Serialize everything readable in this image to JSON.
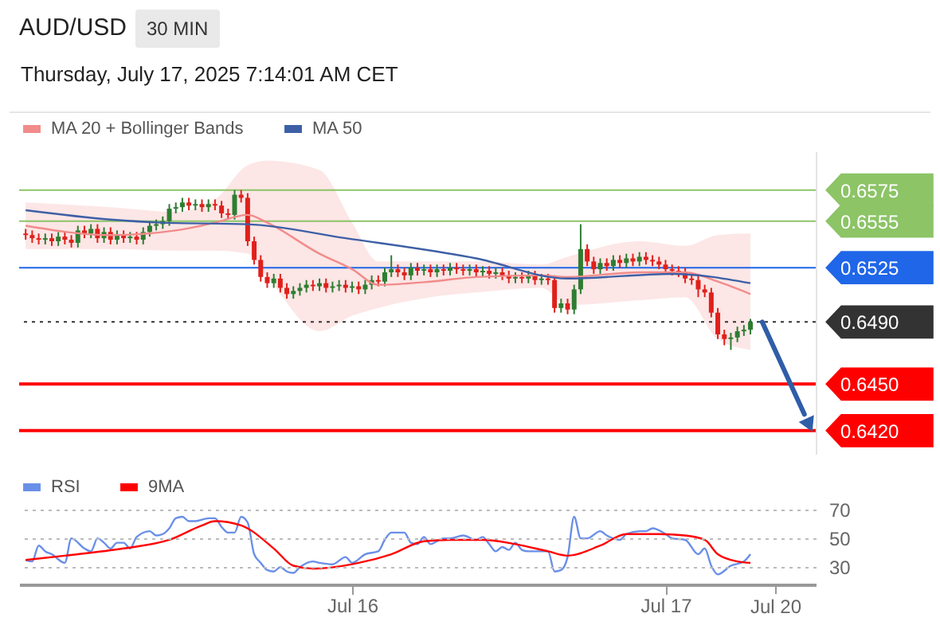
{
  "chart_data": [
    {
      "type": "candlestick",
      "title": "AUD/USD",
      "subtitle": "Thursday, July 17, 2025 7:14:01 AM CET",
      "annotations": [
        "30 MIN"
      ],
      "x": [
        "2025-07-14T23:00",
        "2025-07-14T23:30",
        "2025-07-15T00:00",
        "2025-07-15T00:30",
        "2025-07-15T01:00",
        "2025-07-15T01:30",
        "2025-07-15T02:00",
        "2025-07-15T02:30",
        "2025-07-15T03:00",
        "2025-07-15T03:30",
        "2025-07-15T04:00",
        "2025-07-15T04:30",
        "2025-07-15T05:00",
        "2025-07-15T05:30",
        "2025-07-15T06:00",
        "2025-07-15T06:30",
        "2025-07-15T07:00",
        "2025-07-15T07:30",
        "2025-07-15T08:00",
        "2025-07-15T08:30",
        "2025-07-15T09:00",
        "2025-07-15T09:30",
        "2025-07-15T10:00",
        "2025-07-15T10:30",
        "2025-07-15T11:00",
        "2025-07-15T11:30",
        "2025-07-15T12:00",
        "2025-07-15T12:30",
        "2025-07-15T13:00",
        "2025-07-15T13:30",
        "2025-07-15T14:00",
        "2025-07-15T14:30",
        "2025-07-15T15:00",
        "2025-07-15T15:30",
        "2025-07-15T16:00",
        "2025-07-15T16:30",
        "2025-07-15T17:00",
        "2025-07-15T17:30",
        "2025-07-15T18:00",
        "2025-07-15T18:30",
        "2025-07-15T19:00",
        "2025-07-15T19:30",
        "2025-07-15T20:00",
        "2025-07-15T20:30",
        "2025-07-15T21:00",
        "2025-07-15T21:30",
        "2025-07-15T22:00",
        "2025-07-15T22:30",
        "2025-07-15T23:00",
        "2025-07-15T23:30",
        "2025-07-16T00:00",
        "2025-07-16T00:30",
        "2025-07-16T01:00",
        "2025-07-16T01:30",
        "2025-07-16T02:00",
        "2025-07-16T02:30",
        "2025-07-16T03:00",
        "2025-07-16T03:30",
        "2025-07-16T04:00",
        "2025-07-16T04:30",
        "2025-07-16T05:00",
        "2025-07-16T05:30",
        "2025-07-16T06:00",
        "2025-07-16T06:30",
        "2025-07-16T07:00",
        "2025-07-16T07:30",
        "2025-07-16T08:00",
        "2025-07-16T08:30",
        "2025-07-16T09:00",
        "2025-07-16T09:30",
        "2025-07-16T10:00",
        "2025-07-16T10:30",
        "2025-07-16T11:00",
        "2025-07-16T11:30",
        "2025-07-16T12:00",
        "2025-07-16T12:30",
        "2025-07-16T13:00",
        "2025-07-16T13:30",
        "2025-07-16T14:00",
        "2025-07-16T14:30",
        "2025-07-16T15:00",
        "2025-07-16T15:30",
        "2025-07-16T16:00",
        "2025-07-16T16:30",
        "2025-07-16T17:00",
        "2025-07-16T17:30",
        "2025-07-16T18:00",
        "2025-07-16T18:30",
        "2025-07-16T19:00",
        "2025-07-16T19:30",
        "2025-07-16T20:00",
        "2025-07-16T20:30",
        "2025-07-16T21:00",
        "2025-07-16T21:30",
        "2025-07-16T22:00",
        "2025-07-16T22:30",
        "2025-07-16T23:00",
        "2025-07-16T23:30",
        "2025-07-17T00:00",
        "2025-07-17T00:30",
        "2025-07-17T01:00",
        "2025-07-17T01:30",
        "2025-07-17T02:00",
        "2025-07-17T02:30",
        "2025-07-17T03:00",
        "2025-07-17T03:30",
        "2025-07-17T04:00",
        "2025-07-17T04:30",
        "2025-07-17T05:00",
        "2025-07-17T05:30",
        "2025-07-17T06:00",
        "2025-07-17T06:30"
      ],
      "ohlc": [
        [
          0.6547,
          0.655,
          0.6543,
          0.6546
        ],
        [
          0.6546,
          0.6549,
          0.6541,
          0.6544
        ],
        [
          0.6544,
          0.6547,
          0.654,
          0.6543
        ],
        [
          0.6543,
          0.6547,
          0.654,
          0.6544
        ],
        [
          0.6544,
          0.6547,
          0.6539,
          0.6542
        ],
        [
          0.6542,
          0.6548,
          0.6539,
          0.6545
        ],
        [
          0.6545,
          0.6548,
          0.654,
          0.6543
        ],
        [
          0.6543,
          0.6546,
          0.6538,
          0.6541
        ],
        [
          0.6541,
          0.6552,
          0.6538,
          0.6549
        ],
        [
          0.6549,
          0.6552,
          0.6544,
          0.6547
        ],
        [
          0.6547,
          0.6553,
          0.6544,
          0.655
        ],
        [
          0.655,
          0.6553,
          0.6541,
          0.6544
        ],
        [
          0.6544,
          0.6551,
          0.6541,
          0.6548
        ],
        [
          0.6548,
          0.6551,
          0.654,
          0.6543
        ],
        [
          0.6543,
          0.6549,
          0.654,
          0.6546
        ],
        [
          0.6546,
          0.6549,
          0.6541,
          0.6544
        ],
        [
          0.6544,
          0.6548,
          0.6541,
          0.6545
        ],
        [
          0.6545,
          0.6548,
          0.654,
          0.6543
        ],
        [
          0.6543,
          0.6551,
          0.654,
          0.6548
        ],
        [
          0.6548,
          0.6555,
          0.6545,
          0.6552
        ],
        [
          0.6552,
          0.6556,
          0.6549,
          0.6553
        ],
        [
          0.6553,
          0.6558,
          0.655,
          0.6555
        ],
        [
          0.6555,
          0.6566,
          0.6552,
          0.6563
        ],
        [
          0.6563,
          0.6567,
          0.656,
          0.6564
        ],
        [
          0.6564,
          0.657,
          0.6561,
          0.6567
        ],
        [
          0.6567,
          0.657,
          0.6562,
          0.6565
        ],
        [
          0.6565,
          0.6569,
          0.6562,
          0.6566
        ],
        [
          0.6566,
          0.6569,
          0.6561,
          0.6564
        ],
        [
          0.6564,
          0.6569,
          0.6561,
          0.6566
        ],
        [
          0.6566,
          0.6569,
          0.6562,
          0.6565
        ],
        [
          0.6565,
          0.6568,
          0.6557,
          0.656
        ],
        [
          0.656,
          0.6563,
          0.6556,
          0.6559
        ],
        [
          0.6559,
          0.6575,
          0.6556,
          0.6572
        ],
        [
          0.6572,
          0.6575,
          0.6567,
          0.657
        ],
        [
          0.657,
          0.6573,
          0.6539,
          0.6542
        ],
        [
          0.6542,
          0.6545,
          0.6527,
          0.653
        ],
        [
          0.653,
          0.6533,
          0.6516,
          0.6519
        ],
        [
          0.6519,
          0.6522,
          0.6512,
          0.6515
        ],
        [
          0.6515,
          0.6521,
          0.6512,
          0.6518
        ],
        [
          0.6518,
          0.6521,
          0.6509,
          0.6512
        ],
        [
          0.6512,
          0.6515,
          0.6505,
          0.6508
        ],
        [
          0.6508,
          0.6513,
          0.6505,
          0.651
        ],
        [
          0.651,
          0.6515,
          0.6507,
          0.6512
        ],
        [
          0.6512,
          0.6517,
          0.6509,
          0.6514
        ],
        [
          0.6514,
          0.6517,
          0.651,
          0.6513
        ],
        [
          0.6513,
          0.6518,
          0.651,
          0.6515
        ],
        [
          0.6515,
          0.6518,
          0.6509,
          0.6512
        ],
        [
          0.6512,
          0.6516,
          0.6509,
          0.6513
        ],
        [
          0.6513,
          0.6517,
          0.651,
          0.6514
        ],
        [
          0.6514,
          0.6517,
          0.6509,
          0.6512
        ],
        [
          0.6512,
          0.6516,
          0.6509,
          0.6513
        ],
        [
          0.6513,
          0.6516,
          0.6508,
          0.6511
        ],
        [
          0.6511,
          0.6517,
          0.6508,
          0.6514
        ],
        [
          0.6514,
          0.652,
          0.6511,
          0.6517
        ],
        [
          0.6517,
          0.652,
          0.6513,
          0.6516
        ],
        [
          0.6516,
          0.6525,
          0.6513,
          0.6522
        ],
        [
          0.6522,
          0.6533,
          0.6519,
          0.6524
        ],
        [
          0.6524,
          0.6527,
          0.6519,
          0.6522
        ],
        [
          0.6522,
          0.6525,
          0.6517,
          0.652
        ],
        [
          0.652,
          0.6528,
          0.6517,
          0.6525
        ],
        [
          0.6525,
          0.6528,
          0.652,
          0.6523
        ],
        [
          0.6523,
          0.6527,
          0.652,
          0.6524
        ],
        [
          0.6524,
          0.6527,
          0.6519,
          0.6522
        ],
        [
          0.6522,
          0.6527,
          0.6519,
          0.6524
        ],
        [
          0.6524,
          0.6527,
          0.652,
          0.6523
        ],
        [
          0.6523,
          0.6528,
          0.652,
          0.6525
        ],
        [
          0.6525,
          0.6528,
          0.6521,
          0.6524
        ],
        [
          0.6524,
          0.6527,
          0.652,
          0.6523
        ],
        [
          0.6523,
          0.6527,
          0.652,
          0.6524
        ],
        [
          0.6524,
          0.6527,
          0.6519,
          0.6522
        ],
        [
          0.6522,
          0.6526,
          0.6519,
          0.6523
        ],
        [
          0.6523,
          0.6526,
          0.6518,
          0.6521
        ],
        [
          0.6521,
          0.6525,
          0.6518,
          0.6522
        ],
        [
          0.6522,
          0.6525,
          0.6517,
          0.652
        ],
        [
          0.652,
          0.6523,
          0.6515,
          0.6518
        ],
        [
          0.6518,
          0.6522,
          0.6515,
          0.6519
        ],
        [
          0.6519,
          0.6522,
          0.6515,
          0.6518
        ],
        [
          0.6518,
          0.6523,
          0.6515,
          0.652
        ],
        [
          0.652,
          0.6523,
          0.6514,
          0.6517
        ],
        [
          0.6517,
          0.6521,
          0.6514,
          0.6518
        ],
        [
          0.6518,
          0.6521,
          0.6514,
          0.6517
        ],
        [
          0.6517,
          0.652,
          0.6496,
          0.6499
        ],
        [
          0.6499,
          0.6505,
          0.6496,
          0.6502
        ],
        [
          0.6502,
          0.6505,
          0.6495,
          0.6498
        ],
        [
          0.6498,
          0.6514,
          0.6495,
          0.6511
        ],
        [
          0.6511,
          0.6553,
          0.6508,
          0.6537
        ],
        [
          0.6537,
          0.654,
          0.6526,
          0.6529
        ],
        [
          0.6529,
          0.6532,
          0.6521,
          0.6524
        ],
        [
          0.6524,
          0.6531,
          0.6521,
          0.6528
        ],
        [
          0.6528,
          0.6531,
          0.6523,
          0.6526
        ],
        [
          0.6526,
          0.6533,
          0.6523,
          0.653
        ],
        [
          0.653,
          0.6533,
          0.6525,
          0.6528
        ],
        [
          0.6528,
          0.6534,
          0.6525,
          0.6531
        ],
        [
          0.6531,
          0.6534,
          0.6526,
          0.6529
        ],
        [
          0.6529,
          0.6535,
          0.6526,
          0.6532
        ],
        [
          0.6532,
          0.6535,
          0.6527,
          0.653
        ],
        [
          0.653,
          0.6533,
          0.6526,
          0.6529
        ],
        [
          0.6529,
          0.6532,
          0.6524,
          0.6527
        ],
        [
          0.6527,
          0.653,
          0.6521,
          0.6524
        ],
        [
          0.6524,
          0.6527,
          0.652,
          0.6523
        ],
        [
          0.6523,
          0.6526,
          0.6519,
          0.6522
        ],
        [
          0.6522,
          0.6525,
          0.6515,
          0.6518
        ],
        [
          0.6518,
          0.6521,
          0.6514,
          0.6517
        ],
        [
          0.6517,
          0.652,
          0.6506,
          0.6511
        ],
        [
          0.6511,
          0.6514,
          0.6506,
          0.6509
        ],
        [
          0.6509,
          0.6512,
          0.6493,
          0.6496
        ],
        [
          0.6496,
          0.6499,
          0.6479,
          0.6482
        ],
        [
          0.6482,
          0.6485,
          0.6475,
          0.6479
        ],
        [
          0.6479,
          0.6483,
          0.6472,
          0.648
        ],
        [
          0.648,
          0.6487,
          0.6477,
          0.6484
        ],
        [
          0.6484,
          0.6488,
          0.6481,
          0.6485
        ],
        [
          0.6485,
          0.6492,
          0.6482,
          0.649
        ]
      ],
      "series": [
        {
          "name": "MA 20 + Bollinger Bands",
          "type": "line",
          "color": "#f28b8b",
          "x": [
            "2025-07-14T23:00",
            "2025-07-15T05:30",
            "2025-07-15T10:30",
            "2025-07-15T13:30",
            "2025-07-15T16:00",
            "2025-07-15T17:30",
            "2025-07-15T21:30",
            "2025-07-16T00:00",
            "2025-07-16T02:00",
            "2025-07-16T06:00",
            "2025-07-16T09:30",
            "2025-07-16T14:30",
            "2025-07-16T16:30",
            "2025-07-16T22:00",
            "2025-07-17T01:30",
            "2025-07-17T04:00",
            "2025-07-17T06:30"
          ],
          "values": [
            0.6552,
            0.6546,
            0.6549,
            0.6554,
            0.6559,
            0.6554,
            0.6534,
            0.6524,
            0.6514,
            0.6516,
            0.6519,
            0.652,
            0.6519,
            0.6522,
            0.6522,
            0.6516,
            0.6508
          ],
          "upper": [
            0.6567,
            0.6564,
            0.6561,
            0.6569,
            0.6591,
            0.6594,
            0.6588,
            0.6554,
            0.6529,
            0.6529,
            0.6529,
            0.6527,
            0.6532,
            0.6542,
            0.6539,
            0.6546,
            0.6547
          ],
          "lower": [
            0.6537,
            0.6537,
            0.6536,
            0.6536,
            0.6534,
            0.6519,
            0.6484,
            0.6494,
            0.6499,
            0.6506,
            0.6509,
            0.6512,
            0.6501,
            0.6504,
            0.6506,
            0.6479,
            0.6472
          ]
        },
        {
          "name": "MA 50",
          "type": "line",
          "color": "#3d5fa6",
          "x": [
            "2025-07-14T23:00",
            "2025-07-15T05:30",
            "2025-07-15T09:30",
            "2025-07-15T16:00",
            "2025-07-15T23:30",
            "2025-07-16T09:30",
            "2025-07-16T16:30",
            "2025-07-17T00:30",
            "2025-07-17T06:30"
          ],
          "values": [
            0.6562,
            0.6556,
            0.6554,
            0.6553,
            0.6544,
            0.6531,
            0.6518,
            0.6521,
            0.6515
          ]
        }
      ],
      "xlim": [
        "2025-07-14T22:30",
        "2025-07-17T11:30"
      ],
      "ylim": [
        0.6405,
        0.66
      ],
      "tick_labels": "y",
      "legend": "top left",
      "yticks": [
        {
          "value": 0.642,
          "label": "0.6420"
        },
        {
          "value": 0.645,
          "label": "0.6450"
        },
        {
          "value": 0.649,
          "label": "0.6490"
        },
        {
          "value": 0.6525,
          "label": "0.6525"
        },
        {
          "value": 0.6555,
          "label": "0.6555"
        },
        {
          "value": 0.6575,
          "label": "0.6575"
        }
      ],
      "ref_lines": [
        {
          "axis": "y",
          "value": 0.6575,
          "color": "#8cc466"
        },
        {
          "axis": "y",
          "value": 0.6555,
          "color": "#8cc466"
        },
        {
          "axis": "y",
          "value": 0.6525,
          "color": "#1f66e8"
        },
        {
          "axis": "y",
          "value": 0.649,
          "color": "#333333",
          "line_style": "dotted"
        },
        {
          "axis": "y",
          "value": 0.645,
          "color": "#ff0000"
        },
        {
          "axis": "y",
          "value": 0.642,
          "color": "#ff0000"
        }
      ]
    },
    {
      "type": "line",
      "series": [
        {
          "name": "RSI",
          "color": "#6a8fe8",
          "x": [
            "2025-07-14T23:00",
            "2025-07-14T23:30",
            "2025-07-15T00:00",
            "2025-07-15T00:30",
            "2025-07-15T01:00",
            "2025-07-15T02:00",
            "2025-07-15T02:30",
            "2025-07-15T03:30",
            "2025-07-15T04:00",
            "2025-07-15T04:30",
            "2025-07-15T05:00",
            "2025-07-15T05:30",
            "2025-07-15T06:00",
            "2025-07-15T06:30",
            "2025-07-15T07:00",
            "2025-07-15T07:30",
            "2025-07-15T08:30",
            "2025-07-15T09:00",
            "2025-07-15T09:30",
            "2025-07-15T10:00",
            "2025-07-15T10:30",
            "2025-07-15T11:00",
            "2025-07-15T11:30",
            "2025-07-15T12:00",
            "2025-07-15T13:00",
            "2025-07-15T13:30",
            "2025-07-15T14:00",
            "2025-07-15T14:30",
            "2025-07-15T15:00",
            "2025-07-15T15:30",
            "2025-07-15T16:00",
            "2025-07-15T16:30",
            "2025-07-15T17:00",
            "2025-07-15T17:30",
            "2025-07-15T18:00",
            "2025-07-15T18:30",
            "2025-07-15T19:00",
            "2025-07-15T19:30",
            "2025-07-15T20:00",
            "2025-07-15T21:00",
            "2025-07-15T21:30",
            "2025-07-15T22:30",
            "2025-07-15T23:30",
            "2025-07-16T00:00",
            "2025-07-16T01:00",
            "2025-07-16T02:00",
            "2025-07-16T02:30",
            "2025-07-16T03:00",
            "2025-07-16T04:00",
            "2025-07-16T04:30",
            "2025-07-16T05:00",
            "2025-07-16T05:30",
            "2025-07-16T06:00",
            "2025-07-16T06:30",
            "2025-07-16T07:00",
            "2025-07-16T07:30",
            "2025-07-16T08:30",
            "2025-07-16T09:30",
            "2025-07-16T10:00",
            "2025-07-16T10:30",
            "2025-07-16T11:00",
            "2025-07-16T11:30",
            "2025-07-16T12:00",
            "2025-07-16T12:30",
            "2025-07-16T13:00",
            "2025-07-16T13:30",
            "2025-07-16T14:00",
            "2025-07-16T15:00",
            "2025-07-16T15:30",
            "2025-07-16T16:00",
            "2025-07-16T16:30",
            "2025-07-16T17:00",
            "2025-07-16T17:30",
            "2025-07-16T18:00",
            "2025-07-16T19:00",
            "2025-07-16T19:30",
            "2025-07-16T20:30",
            "2025-07-16T21:00",
            "2025-07-16T22:00",
            "2025-07-16T22:30",
            "2025-07-16T23:00",
            "2025-07-17T00:00",
            "2025-07-17T00:30",
            "2025-07-17T01:30",
            "2025-07-17T02:30",
            "2025-07-17T03:00",
            "2025-07-17T03:30",
            "2025-07-17T04:00",
            "2025-07-17T05:00",
            "2025-07-17T06:00",
            "2025-07-17T06:30"
          ],
          "values": [
            35,
            34,
            45,
            41,
            39,
            33,
            50,
            43,
            41,
            50,
            47,
            43,
            47,
            47,
            43,
            51,
            55,
            52,
            53,
            57,
            64,
            65,
            62,
            62,
            64,
            64,
            58,
            54,
            54,
            65,
            61,
            39,
            33,
            28,
            27,
            30,
            27,
            26,
            30,
            34,
            33,
            32,
            37,
            33,
            39,
            41,
            49,
            54,
            54,
            47,
            46,
            51,
            46,
            48,
            50,
            50,
            52,
            49,
            51,
            46,
            41,
            44,
            42,
            47,
            42,
            41,
            41,
            41,
            27,
            28,
            37,
            65,
            50,
            50,
            55,
            52,
            49,
            53,
            55,
            55,
            57,
            53,
            50,
            49,
            39,
            43,
            31,
            25,
            31,
            34,
            39
          ]
        },
        {
          "name": "9MA",
          "color": "#ff0000",
          "x": [
            "2025-07-14T23:00",
            "2025-07-15T02:00",
            "2025-07-15T06:30",
            "2025-07-15T10:00",
            "2025-07-15T12:30",
            "2025-07-15T13:30",
            "2025-07-15T15:30",
            "2025-07-15T18:00",
            "2025-07-15T19:30",
            "2025-07-15T21:00",
            "2025-07-16T00:30",
            "2025-07-16T03:00",
            "2025-07-16T05:30",
            "2025-07-16T07:30",
            "2025-07-16T10:00",
            "2025-07-16T12:30",
            "2025-07-16T15:00",
            "2025-07-16T16:30",
            "2025-07-16T19:00",
            "2025-07-16T21:00",
            "2025-07-16T23:30",
            "2025-07-17T01:30",
            "2025-07-17T03:00",
            "2025-07-17T04:00",
            "2025-07-17T05:30",
            "2025-07-17T06:30"
          ],
          "values": [
            35,
            38,
            43,
            49,
            59,
            62,
            59,
            43,
            31,
            29,
            33,
            39,
            48,
            49,
            49,
            46,
            41,
            38,
            45,
            53,
            53,
            52,
            49,
            39,
            34,
            33
          ]
        }
      ],
      "xlim": [
        "2025-07-14T22:30",
        "2025-07-17T11:30"
      ],
      "xticks": [
        {
          "value": "2025-07-16T00:00",
          "label": "Jul 16"
        },
        {
          "value": "2025-07-17T00:00",
          "label": "Jul 17"
        }
      ],
      "annotations": [
        "Jul 20"
      ],
      "ylim": [
        18,
        70
      ],
      "yticks": [
        30,
        50,
        70
      ],
      "grid": "y",
      "legend": "top left"
    }
  ]
}
